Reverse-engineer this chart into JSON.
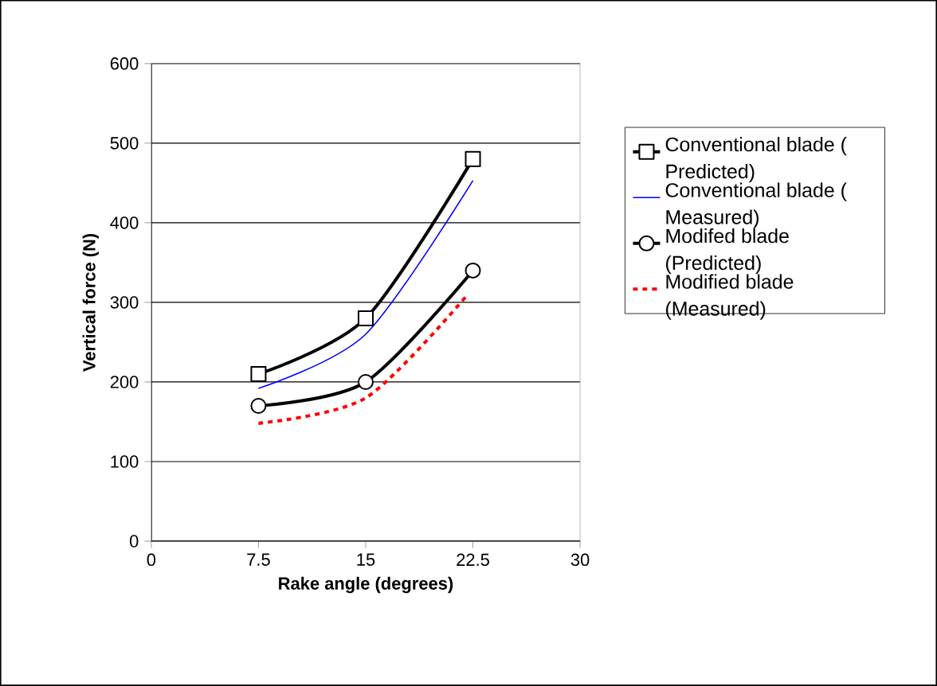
{
  "chart_data": {
    "type": "line",
    "xlabel": "Rake angle (degrees)",
    "ylabel": "Vertical force (N)",
    "x": [
      7.5,
      15,
      22.5
    ],
    "series": [
      {
        "name": "Conventional blade ( Predicted)",
        "color": "#000000",
        "values": [
          210,
          280,
          480
        ],
        "marker": "square",
        "line_style": "solid"
      },
      {
        "name": "Conventional blade ( Measured)",
        "color": "#0000ff",
        "values": [
          192,
          260,
          453
        ],
        "line_style": "solid"
      },
      {
        "name": "Modifed blade (Predicted)",
        "color": "#000000",
        "values": [
          170,
          200,
          340
        ],
        "marker": "circle",
        "line_style": "solid"
      },
      {
        "name": "Modified blade (Measured)",
        "color": "#ff0000",
        "x": [
          7.5,
          15,
          22
        ],
        "values": [
          148,
          180,
          307
        ],
        "line_style": "dashed"
      }
    ],
    "xlim": [
      0,
      30
    ],
    "xticks": [
      0,
      7.5,
      15,
      22.5,
      30
    ],
    "ylim": [
      0,
      600
    ],
    "yticks": [
      0,
      100,
      200,
      300,
      400,
      500,
      600
    ],
    "grid": "y",
    "legend": "right"
  }
}
